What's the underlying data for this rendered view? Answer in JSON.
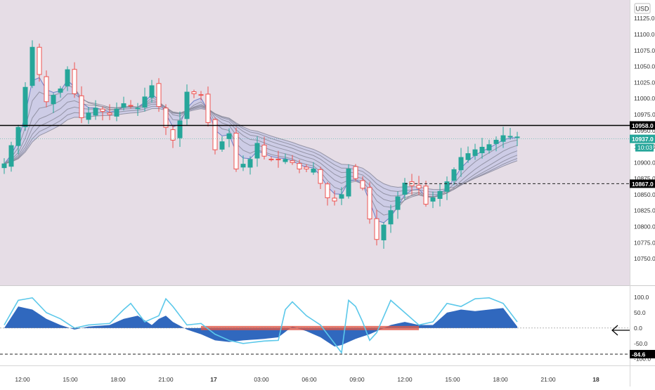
{
  "currency_label": "USD",
  "colors": {
    "price_bg": "#e6dde6",
    "osc_bg": "#ffffff",
    "bull": "#26a69a",
    "bear": "#ef5350",
    "ribbon_fill": "#c4c6e6",
    "ribbon_line": "#8a8a9a",
    "resistance": "#000000",
    "current_price_bg": "#26a69a",
    "axis_text": "#333333",
    "osc_blue": "#1e5bb8",
    "osc_light": "#5bc8ea",
    "osc_purple": "#9c8fd6",
    "osc_red": "#e05545",
    "osc_yellow": "#f3e34a"
  },
  "icons": {
    "arrow": "left-arrow-icon"
  },
  "chart_data": [
    {
      "type": "candlestick",
      "title": "",
      "ylim": [
        10715,
        11145
      ],
      "yticks": [
        10750,
        10775,
        10800,
        10825,
        10850,
        10875,
        10900,
        10925,
        10950,
        10975,
        11000,
        11025,
        11050,
        11075,
        11100,
        11125
      ],
      "ytick_labels": [
        "10750.0",
        "10775.0",
        "10800.0",
        "10825.0",
        "10850.0",
        "10875.0",
        "10900.0",
        "10925.0",
        "10950.0",
        "10975.0",
        "11000.0",
        "11025.0",
        "11050.0",
        "11075.0",
        "11100.0",
        "11125.0"
      ],
      "xticks": [
        "12:00",
        "15:00",
        "18:00",
        "21:00",
        "17",
        "03:00",
        "06:00",
        "09:00",
        "12:00",
        "15:00",
        "18:00",
        "21:00",
        "18"
      ],
      "resistance": {
        "value": 10958,
        "label": "10958.0"
      },
      "dashed_level": {
        "value": 10867,
        "label": "10867.0"
      },
      "last_price": {
        "value": 10937,
        "label": "10937.0",
        "countdown": "10:03"
      },
      "grid": false,
      "series": [
        {
          "name": "price",
          "points": [
            [
              0,
              10898
            ],
            [
              2,
              10955
            ],
            [
              4,
              11080
            ],
            [
              6,
              10995
            ],
            [
              8,
              11015
            ],
            [
              9,
              11045
            ],
            [
              11,
              10970
            ],
            [
              13,
              10985
            ],
            [
              15,
              10975
            ],
            [
              17,
              10992
            ],
            [
              19,
              10985
            ],
            [
              21,
              11020
            ],
            [
              23,
              10955
            ],
            [
              24,
              10935
            ],
            [
              25,
              10965
            ],
            [
              26,
              11010
            ],
            [
              28,
              11005
            ],
            [
              30,
              10920
            ],
            [
              32,
              10945
            ],
            [
              33,
              10890
            ],
            [
              35,
              10905
            ],
            [
              36,
              10930
            ],
            [
              37,
              10910
            ],
            [
              38,
              10905
            ],
            [
              40,
              10905
            ],
            [
              41,
              10900
            ],
            [
              42,
              10890
            ],
            [
              44,
              10890
            ],
            [
              46,
              10845
            ],
            [
              47,
              10840
            ],
            [
              48,
              10850
            ],
            [
              49,
              10890
            ],
            [
              51,
              10860
            ],
            [
              52,
              10812
            ],
            [
              53,
              10780
            ],
            [
              55,
              10825
            ],
            [
              57,
              10868
            ],
            [
              59,
              10860
            ],
            [
              60,
              10835
            ],
            [
              62,
              10855
            ],
            [
              63,
              10870
            ],
            [
              65,
              10908
            ],
            [
              67,
              10920
            ],
            [
              69,
              10928
            ],
            [
              71,
              10942
            ],
            [
              73,
              10940
            ]
          ]
        }
      ]
    },
    {
      "type": "line",
      "title": "",
      "ylim": [
        -112,
        125
      ],
      "yticks": [
        100,
        50,
        0,
        -50,
        -100
      ],
      "ytick_labels": [
        "100.0",
        "50.0",
        "0.0",
        "-50.0",
        "-100.0"
      ],
      "marker": {
        "value": -84.6,
        "label": "-84.6"
      },
      "zero_line": 0,
      "series": [
        {
          "name": "wave",
          "points": [
            [
              0,
              10
            ],
            [
              2,
              90
            ],
            [
              4,
              98
            ],
            [
              6,
              50
            ],
            [
              7,
              40
            ],
            [
              8,
              30
            ],
            [
              10,
              0
            ],
            [
              12,
              10
            ],
            [
              15,
              15
            ],
            [
              17,
              60
            ],
            [
              18,
              80
            ],
            [
              20,
              20
            ],
            [
              22,
              40
            ],
            [
              23,
              95
            ],
            [
              24,
              70
            ],
            [
              26,
              10
            ],
            [
              28,
              15
            ],
            [
              30,
              -20
            ],
            [
              32,
              -40
            ],
            [
              34,
              -50
            ],
            [
              37,
              -42
            ],
            [
              39,
              -40
            ],
            [
              40,
              60
            ],
            [
              41,
              85
            ],
            [
              43,
              40
            ],
            [
              45,
              10
            ],
            [
              47,
              -50
            ],
            [
              48,
              -80
            ],
            [
              49,
              90
            ],
            [
              50,
              70
            ],
            [
              51,
              20
            ],
            [
              52,
              -40
            ],
            [
              53,
              -15
            ],
            [
              55,
              90
            ],
            [
              57,
              50
            ],
            [
              59,
              10
            ],
            [
              61,
              20
            ],
            [
              63,
              80
            ],
            [
              65,
              70
            ],
            [
              67,
              95
            ],
            [
              69,
              98
            ],
            [
              71,
              80
            ],
            [
              73,
              20
            ]
          ]
        },
        {
          "name": "fill",
          "points": [
            [
              0,
              0
            ],
            [
              2,
              70
            ],
            [
              4,
              60
            ],
            [
              6,
              30
            ],
            [
              8,
              10
            ],
            [
              10,
              -5
            ],
            [
              12,
              5
            ],
            [
              15,
              10
            ],
            [
              17,
              30
            ],
            [
              19,
              40
            ],
            [
              21,
              10
            ],
            [
              22,
              30
            ],
            [
              23,
              40
            ],
            [
              24,
              20
            ],
            [
              26,
              -5
            ],
            [
              28,
              -20
            ],
            [
              30,
              -40
            ],
            [
              32,
              -45
            ],
            [
              34,
              -40
            ],
            [
              37,
              -35
            ],
            [
              39,
              -30
            ],
            [
              41,
              5
            ],
            [
              43,
              -10
            ],
            [
              45,
              -30
            ],
            [
              47,
              -60
            ],
            [
              48,
              -55
            ],
            [
              50,
              -35
            ],
            [
              52,
              -20
            ],
            [
              53,
              -10
            ],
            [
              55,
              10
            ],
            [
              57,
              20
            ],
            [
              59,
              10
            ],
            [
              61,
              10
            ],
            [
              63,
              50
            ],
            [
              65,
              60
            ],
            [
              67,
              55
            ],
            [
              69,
              60
            ],
            [
              71,
              65
            ],
            [
              73,
              5
            ]
          ]
        }
      ]
    }
  ]
}
